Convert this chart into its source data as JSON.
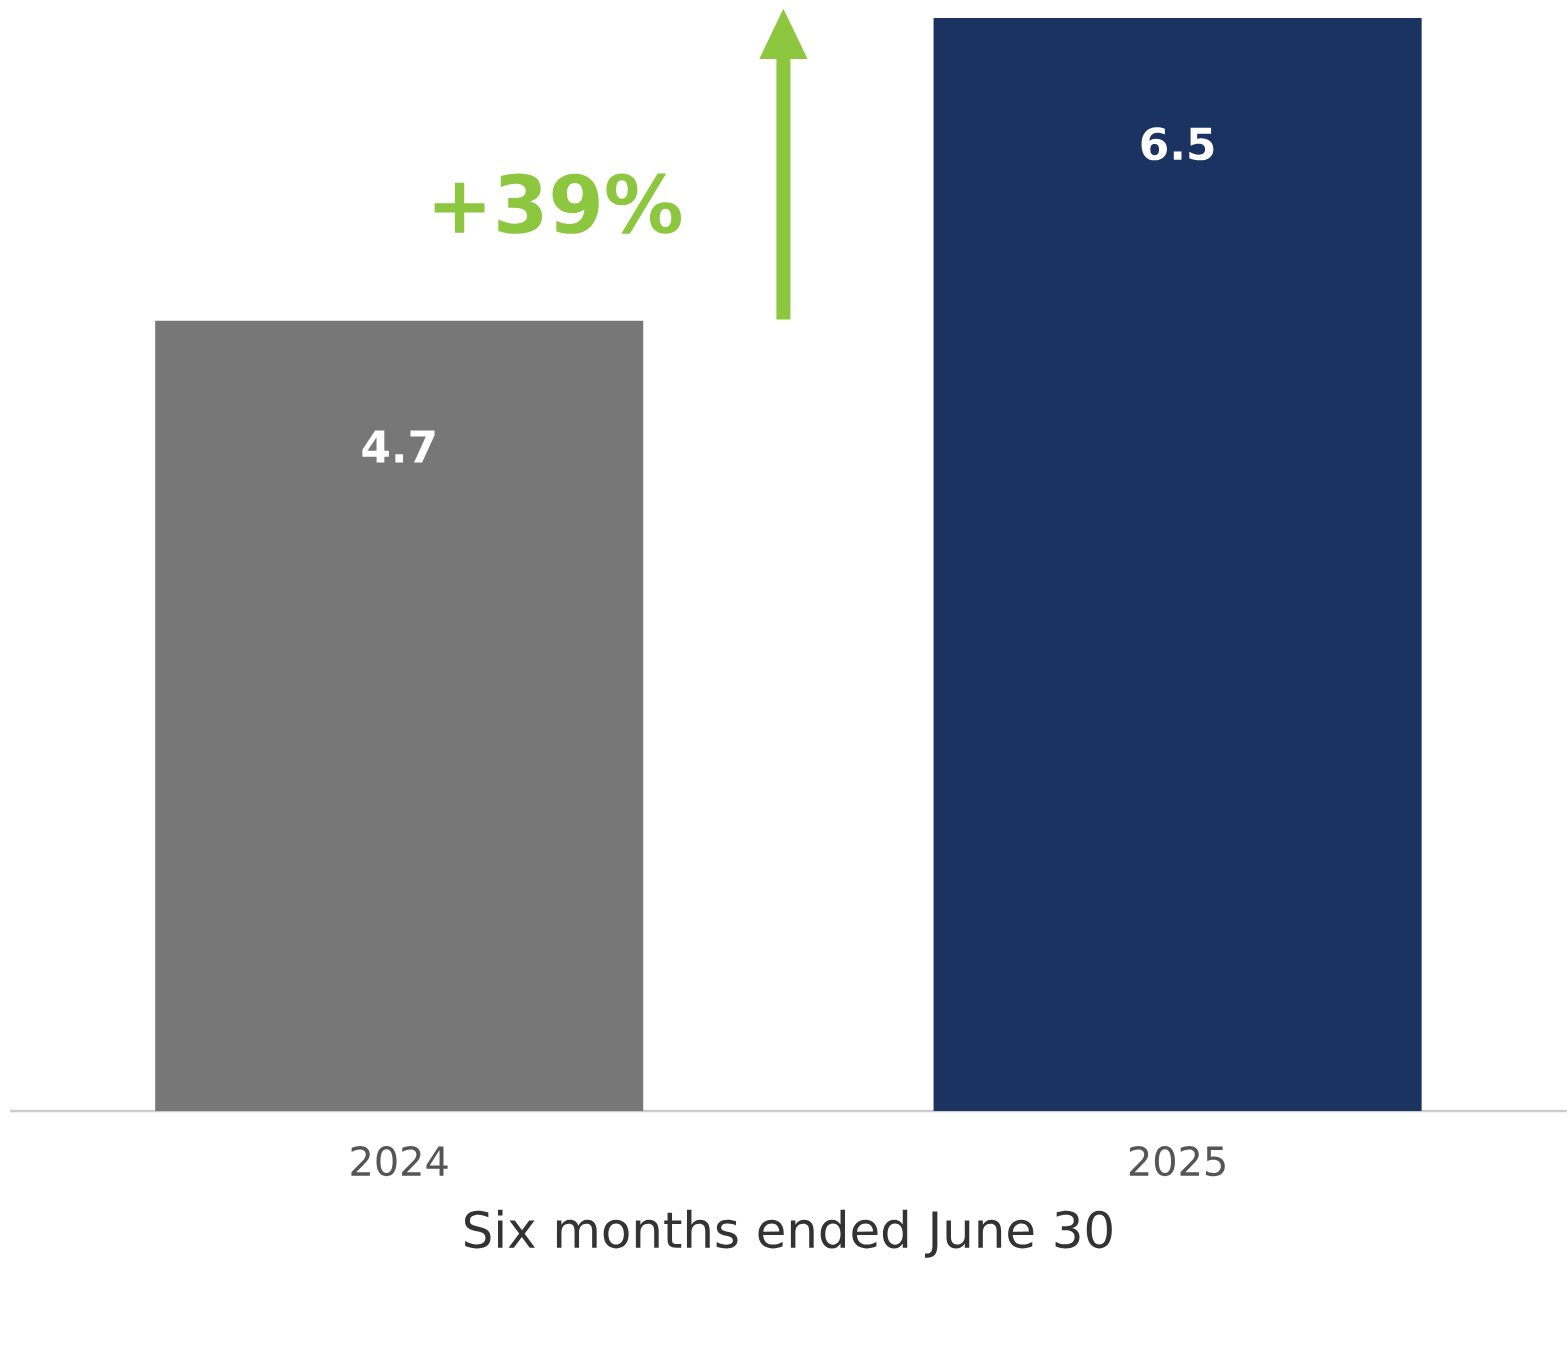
{
  "chart_data": {
    "type": "bar",
    "categories": [
      "2024",
      "2025"
    ],
    "values": [
      4.7,
      6.5
    ],
    "colors": [
      "#777777",
      "#1b3360"
    ],
    "xlabel": "Six months ended June 30",
    "annotations": [
      "+39%"
    ],
    "data_labels": true
  }
}
